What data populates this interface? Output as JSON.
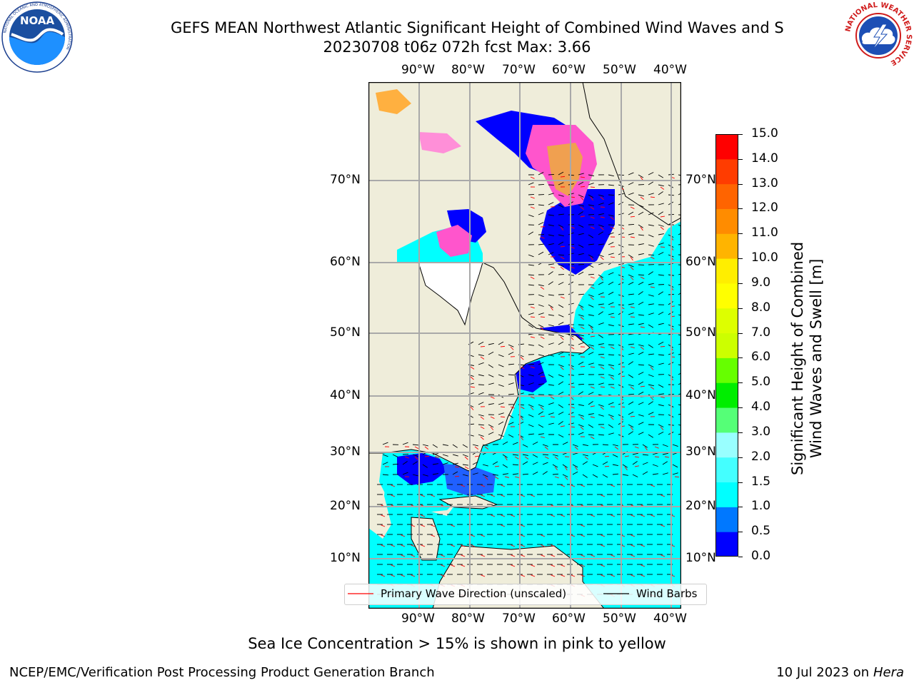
{
  "title": {
    "line1": "GEFS MEAN Northwest Atlantic Significant Height of Combined Wind Waves and S",
    "line2": "20230708 t06z 072h fcst   Max: 3.66"
  },
  "logos": {
    "left": "NOAA",
    "left_ring": "NATIONAL OCEANIC AND ATMOSPHERIC ADMINISTRATION",
    "left_bottom": "U.S. DEPARTMENT OF COMMERCE",
    "right_ring": "NATIONAL WEATHER SERVICE"
  },
  "map": {
    "lon_labels": [
      "90°W",
      "80°W",
      "70°W",
      "60°W",
      "50°W",
      "40°W"
    ],
    "lat_labels": [
      "70°N",
      "60°N",
      "50°N",
      "40°N",
      "30°N",
      "20°N",
      "10°N"
    ],
    "colors": {
      "land": "#efedda",
      "ocean_calm": "#00ffff",
      "ocean_low": "#0000ff",
      "ice": "#ff55cc"
    }
  },
  "colorbar": {
    "ticks": [
      "15.0",
      "14.0",
      "13.0",
      "12.0",
      "11.0",
      "10.0",
      "9.0",
      "8.0",
      "7.0",
      "6.0",
      "5.0",
      "4.0",
      "3.0",
      "2.0",
      "1.5",
      "1.0",
      "0.5",
      "0.0"
    ],
    "colors": [
      "#0000ff",
      "#0078ff",
      "#00ffff",
      "#44ffff",
      "#99ffff",
      "#55ff77",
      "#00ee00",
      "#66ff00",
      "#ccff00",
      "#ddff00",
      "#ffff00",
      "#ffee00",
      "#ffb400",
      "#ff8c00",
      "#ff6400",
      "#ff3c00",
      "#ff0000"
    ],
    "label_line1": "Significant Height of Combined",
    "label_line2": "Wind Waves and Swell [m]"
  },
  "legend": {
    "wave_label": "Primary Wave Direction (unscaled)",
    "wind_label": "Wind Barbs",
    "wave_color": "#ff0000",
    "wind_color": "#000000"
  },
  "note": "Sea Ice Concentration > 15% is shown in pink to yellow",
  "footer": {
    "left": "NCEP/EMC/Verification Post Processing Product Generation Branch",
    "right_date": "10 Jul 2023 on ",
    "right_host": "Hera"
  }
}
